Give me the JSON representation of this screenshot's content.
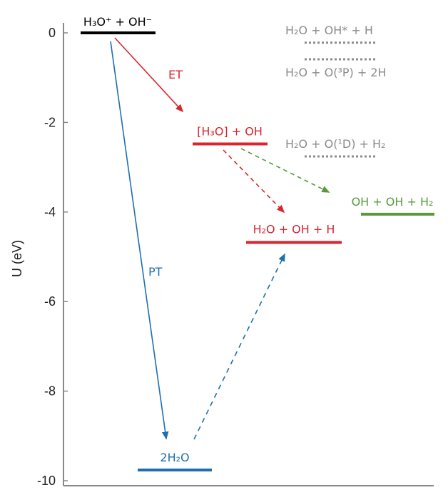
{
  "chart_data": {
    "type": "energy-level-diagram",
    "ylabel": "U (eV)",
    "ylim": [
      -10,
      0
    ],
    "yticks": [
      "0",
      "-2",
      "-4",
      "-6",
      "-8",
      "-10"
    ],
    "colors": {
      "black": "#000000",
      "red": "#d9262e",
      "green": "#5a9a3c",
      "blue": "#1f6fb0",
      "gray": "#8c8c8c"
    },
    "levels": [
      {
        "label": "H₃O⁺ + OH⁻",
        "energy": 0,
        "color": "#000000"
      },
      {
        "label": "[H₃O] + OH",
        "energy": -2.48,
        "color": "#d9262e"
      },
      {
        "label": "H₂O + OH + H",
        "energy": -4.68,
        "color": "#d9262e"
      },
      {
        "label": "OH + OH + H₂",
        "energy": -4.05,
        "color": "#5a9a3c"
      },
      {
        "label": "2H₂O",
        "energy": -9.76,
        "color": "#1f6fb0"
      }
    ],
    "reference_levels": [
      {
        "label": "H₂O + OH* + H",
        "energy": -0.22,
        "style": "dotted"
      },
      {
        "label": "H₂O + O(³P) + 2H",
        "energy": -0.59,
        "style": "dotted"
      },
      {
        "label": "H₂O + O(¹D) + H₂",
        "energy": -2.76,
        "style": "dotted"
      }
    ],
    "transitions": [
      {
        "label": "ET",
        "from": "H₃O⁺ + OH⁻",
        "to": "[H₃O] + OH",
        "style": "solid",
        "color": "#d9262e"
      },
      {
        "label": "PT",
        "from": "H₃O⁺ + OH⁻",
        "to": "2H₂O",
        "style": "solid",
        "color": "#1f6fb0"
      },
      {
        "from": "[H₃O] + OH",
        "to": "H₂O + OH + H",
        "style": "dashed",
        "color": "#d9262e"
      },
      {
        "from": "[H₃O] + OH",
        "to": "OH + OH + H₂",
        "style": "dashed",
        "color": "#5a9a3c"
      },
      {
        "from": "2H₂O",
        "to": "H₂O + OH + H",
        "style": "dashed",
        "color": "#1f6fb0"
      }
    ]
  }
}
